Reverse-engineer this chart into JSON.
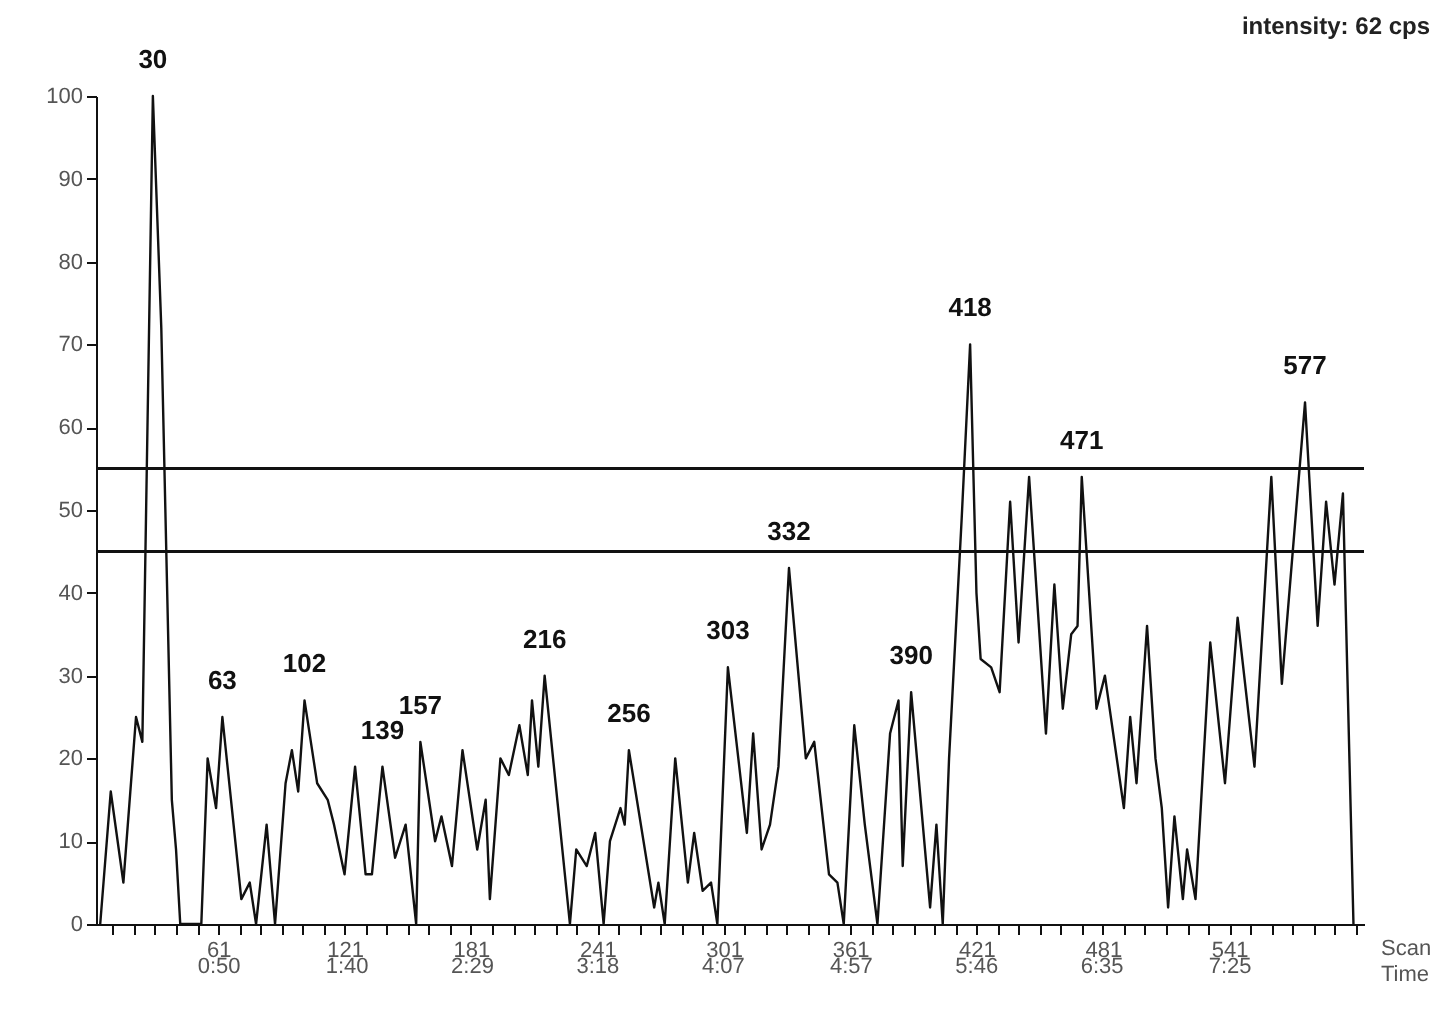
{
  "chart_data": {
    "type": "line",
    "xlabel": "Scan",
    "x2label": "Time",
    "x2lim": [
      2.3,
      497.7
    ],
    "x2ticks": [
      {
        "value": 50,
        "label": "0:50"
      },
      {
        "value": 100,
        "label": "1:40"
      },
      {
        "value": 149,
        "label": "2:29"
      },
      {
        "value": 198,
        "label": "3:18"
      },
      {
        "value": 247,
        "label": "4:07"
      },
      {
        "value": 297,
        "label": "4:57"
      },
      {
        "value": 346,
        "label": "5:46"
      },
      {
        "value": 395,
        "label": "6:35"
      },
      {
        "value": 445,
        "label": "7:25"
      }
    ],
    "x": [
      5,
      10,
      16,
      22,
      25,
      30,
      34,
      39,
      41,
      43,
      53,
      56,
      60,
      63,
      72,
      76,
      79,
      84,
      88,
      93,
      96,
      99,
      102,
      108,
      113,
      116,
      121,
      126,
      131,
      134,
      139,
      145,
      150,
      155,
      157,
      164,
      167,
      172,
      177,
      184,
      188,
      190,
      195,
      199,
      204,
      208,
      210,
      213,
      216,
      228,
      231,
      236,
      240,
      244,
      247,
      252,
      254,
      256,
      268,
      270,
      273,
      278,
      284,
      287,
      291,
      295,
      298,
      303,
      312,
      315,
      319,
      323,
      327,
      332,
      340,
      344,
      351,
      355,
      358,
      363,
      368,
      374,
      380,
      384,
      386,
      390,
      399,
      402,
      405,
      408,
      414,
      418,
      421,
      423,
      428,
      432,
      437,
      441,
      446,
      454,
      458,
      462,
      466,
      469,
      471,
      478,
      482,
      491,
      494,
      497,
      502,
      506,
      509,
      512,
      515,
      519,
      521,
      525,
      532,
      539,
      545,
      553,
      561,
      566,
      577,
      583,
      587,
      591,
      595,
      600
    ],
    "series": [
      {
        "color": "#111111",
        "values": [
          0,
          16,
          5,
          25,
          22,
          100,
          72,
          15,
          9,
          0,
          0,
          20,
          14,
          25,
          3,
          5,
          0,
          12,
          0,
          17,
          21,
          16,
          27,
          17,
          15,
          12,
          6,
          19,
          6,
          6,
          19,
          8,
          12,
          0,
          22,
          10,
          13,
          7,
          21,
          9,
          15,
          3,
          20,
          18,
          24,
          18,
          27,
          19,
          30,
          0,
          9,
          7,
          11,
          0,
          10,
          14,
          12,
          21,
          2,
          5,
          0,
          20,
          5,
          11,
          4,
          5,
          0,
          31,
          11,
          23,
          9,
          12,
          19,
          43,
          20,
          22,
          6,
          5,
          0,
          24,
          12,
          0,
          23,
          27,
          7,
          28,
          2,
          12,
          0,
          20,
          49,
          70,
          40,
          32,
          31,
          28,
          51,
          34,
          54,
          23,
          41,
          26,
          35,
          36,
          54,
          26,
          30,
          14,
          25,
          17,
          36,
          20,
          14,
          2,
          13,
          3,
          9,
          3,
          34,
          17,
          37,
          19,
          54,
          29,
          63,
          36,
          51,
          41,
          52,
          0
        ]
      }
    ],
    "xlim": [
      3,
      605
    ],
    "ylim": [
      0,
      100
    ],
    "xticks": [
      {
        "value": 11,
        "label": null
      },
      {
        "value": 21,
        "label": null
      },
      {
        "value": 31,
        "label": null
      },
      {
        "value": 41,
        "label": null
      },
      {
        "value": 51,
        "label": null
      },
      61,
      {
        "value": 71,
        "label": null
      },
      {
        "value": 81,
        "label": null
      },
      {
        "value": 91,
        "label": null
      },
      {
        "value": 101,
        "label": null
      },
      {
        "value": 111,
        "label": null
      },
      121,
      {
        "value": 131,
        "label": null
      },
      {
        "value": 141,
        "label": null
      },
      {
        "value": 151,
        "label": null
      },
      {
        "value": 161,
        "label": null
      },
      {
        "value": 171,
        "label": null
      },
      181,
      {
        "value": 191,
        "label": null
      },
      {
        "value": 201,
        "label": null
      },
      {
        "value": 211,
        "label": null
      },
      {
        "value": 221,
        "label": null
      },
      {
        "value": 231,
        "label": null
      },
      241,
      {
        "value": 251,
        "label": null
      },
      {
        "value": 261,
        "label": null
      },
      {
        "value": 271,
        "label": null
      },
      {
        "value": 281,
        "label": null
      },
      {
        "value": 291,
        "label": null
      },
      301,
      {
        "value": 311,
        "label": null
      },
      {
        "value": 321,
        "label": null
      },
      {
        "value": 331,
        "label": null
      },
      {
        "value": 341,
        "label": null
      },
      {
        "value": 351,
        "label": null
      },
      361,
      {
        "value": 371,
        "label": null
      },
      {
        "value": 381,
        "label": null
      },
      {
        "value": 391,
        "label": null
      },
      {
        "value": 401,
        "label": null
      },
      {
        "value": 411,
        "label": null
      },
      421,
      {
        "value": 431,
        "label": null
      },
      {
        "value": 441,
        "label": null
      },
      {
        "value": 451,
        "label": null
      },
      {
        "value": 461,
        "label": null
      },
      {
        "value": 471,
        "label": null
      },
      481,
      {
        "value": 491,
        "label": null
      },
      {
        "value": 501,
        "label": null
      },
      {
        "value": 511,
        "label": null
      },
      {
        "value": 521,
        "label": null
      },
      {
        "value": 531,
        "label": null
      },
      541,
      {
        "value": 551,
        "label": null
      },
      {
        "value": 561,
        "label": null
      },
      {
        "value": 571,
        "label": null
      },
      {
        "value": 581,
        "label": null
      },
      {
        "value": 591,
        "label": null
      },
      {
        "value": 601,
        "label": null
      }
    ],
    "yticks": [
      0,
      10,
      20,
      30,
      40,
      50,
      60,
      70,
      80,
      90,
      100
    ],
    "ref_lines": [
      {
        "axis": "y",
        "value": 55,
        "color": "#111111"
      },
      {
        "axis": "y",
        "value": 45,
        "color": "#111111"
      }
    ],
    "annotations": [
      "intensity: 62 cps",
      {
        "text": "30",
        "x": 30,
        "y": 100
      },
      {
        "text": "63",
        "x": 63,
        "y": 25
      },
      {
        "text": "102",
        "x": 102,
        "y": 27
      },
      {
        "text": "139",
        "x": 139,
        "y": 19
      },
      {
        "text": "157",
        "x": 157,
        "y": 22
      },
      {
        "text": "216",
        "x": 216,
        "y": 30
      },
      {
        "text": "256",
        "x": 256,
        "y": 21
      },
      {
        "text": "303",
        "x": 303,
        "y": 31
      },
      {
        "text": "332",
        "x": 332,
        "y": 43
      },
      {
        "text": "390",
        "x": 390,
        "y": 28
      },
      {
        "text": "418",
        "x": 418,
        "y": 70
      },
      {
        "text": "471",
        "x": 471,
        "y": 54
      },
      {
        "text": "577",
        "x": 577,
        "y": 63
      }
    ]
  }
}
